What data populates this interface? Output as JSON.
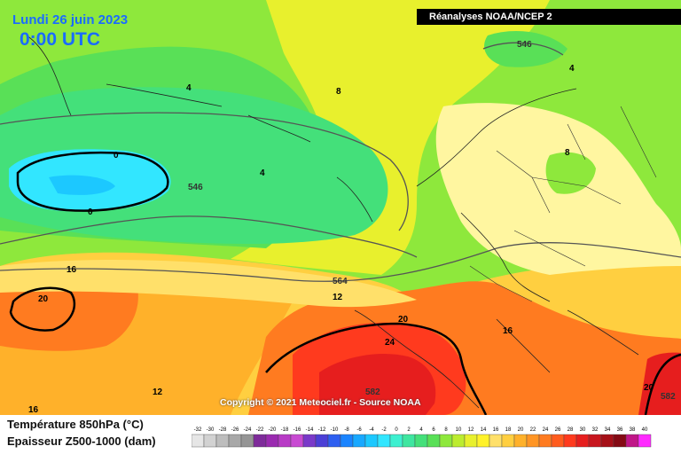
{
  "header": {
    "date": "Lundi 26 juin 2023",
    "time": "0:00 UTC",
    "source_banner": "Réanalyses NOAA/NCEP 2"
  },
  "credit": "Copyright © 2021 Meteociel.fr - Source NOAA",
  "legend": {
    "line1": "Température 850hPa (°C)",
    "line2": "Epaisseur Z500-1000 (dam)",
    "scale_values": [
      "-32",
      "-30",
      "-28",
      "-26",
      "-24",
      "-22",
      "-20",
      "-18",
      "-16",
      "-14",
      "-12",
      "-10",
      "-8",
      "-6",
      "-4",
      "-2",
      "0",
      "2",
      "4",
      "6",
      "8",
      "10",
      "12",
      "14",
      "16",
      "18",
      "20",
      "22",
      "24",
      "26",
      "28",
      "30",
      "32",
      "34",
      "36",
      "38",
      "40"
    ],
    "scale_colors": [
      "#e6e6e6",
      "#d2d2d2",
      "#bdbdbd",
      "#a8a8a8",
      "#959595",
      "#7e2b9a",
      "#9a2ab0",
      "#b83bc6",
      "#c84ad2",
      "#7a39c9",
      "#4b3fd6",
      "#2e5ff0",
      "#1a84ff",
      "#18a8ff",
      "#1cc8ff",
      "#32e6ff",
      "#3df0d0",
      "#3ee6a0",
      "#44e07a",
      "#59e057",
      "#8ee83c",
      "#bcec2f",
      "#e8f02d",
      "#fff22a",
      "#ffe06a",
      "#ffcf40",
      "#ffb12a",
      "#ff9524",
      "#ff7b20",
      "#ff5c1e",
      "#ff3a1e",
      "#e61e1e",
      "#c8161e",
      "#a61018",
      "#840a14",
      "#c01688",
      "#ff2aff"
    ]
  },
  "map": {
    "contour_labels": {
      "temperature": [
        "0",
        "0",
        "4",
        "4",
        "4",
        "8",
        "8",
        "12",
        "12",
        "16",
        "16",
        "16",
        "20",
        "20",
        "20",
        "24"
      ],
      "thickness": [
        "546",
        "546",
        "564",
        "582",
        "582"
      ]
    }
  }
}
